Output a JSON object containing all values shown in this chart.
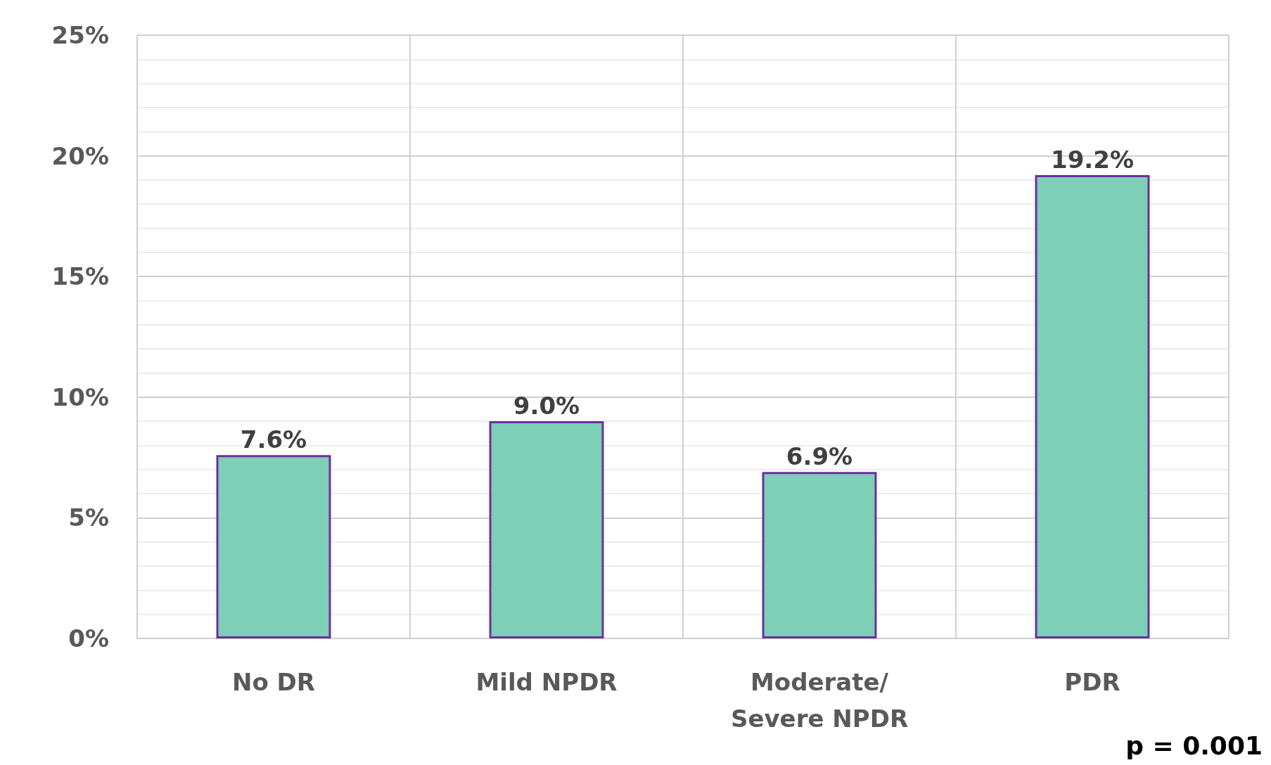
{
  "chart_data": {
    "type": "bar",
    "categories": [
      "No DR",
      "Mild NPDR",
      "Moderate/\nSevere NPDR",
      "PDR"
    ],
    "values": [
      7.6,
      9.0,
      6.9,
      19.2
    ],
    "value_labels": [
      "7.6%",
      "9.0%",
      "6.9%",
      "19.2%"
    ],
    "color": "#7dcfb6",
    "ylim": [
      0,
      25
    ],
    "yticks": [
      {
        "value": 0,
        "label": "0%"
      },
      {
        "value": 5,
        "label": "5%"
      },
      {
        "value": 10,
        "label": "10%"
      },
      {
        "value": 15,
        "label": "15%"
      },
      {
        "value": 20,
        "label": "20%"
      },
      {
        "value": 25,
        "label": "25%"
      }
    ],
    "grid": true,
    "annotations": [
      "p = 0.001"
    ]
  }
}
